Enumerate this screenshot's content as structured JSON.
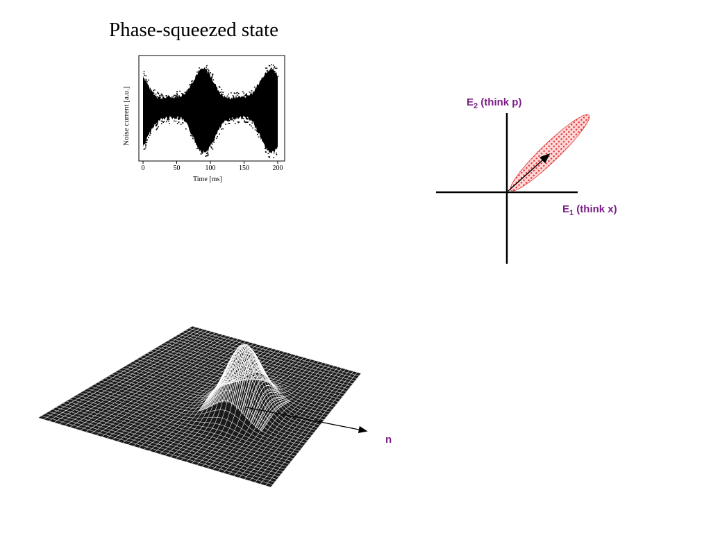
{
  "title": "Phase-squeezed state",
  "noise_plot": {
    "ylabel": "Noise current [a.u.]",
    "xlabel": "Time [ms]",
    "xticks": [
      "0",
      "50",
      "100",
      "150",
      "200"
    ]
  },
  "phase_space": {
    "e2_main": "E",
    "e2_sub": "2",
    "e2_rest": " (think p)",
    "e1_main": "E",
    "e1_sub": "1",
    "e1_rest": " (think x)",
    "label_color": "#7a1d86",
    "ellipse_color": "#e03a3a"
  },
  "surface": {
    "arrow_label": "n",
    "arrow_label_color": "#7a1d86"
  }
}
